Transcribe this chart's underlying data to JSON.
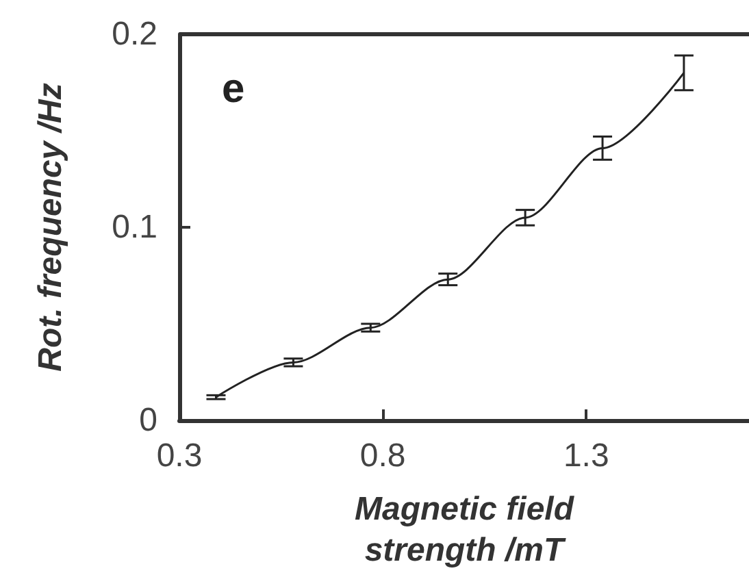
{
  "chart_data": {
    "type": "line",
    "xlabel": "Magnetic field\nstrength /mT",
    "ylabel": "Rot. frequency /Hz",
    "annotations": [
      "e"
    ],
    "x": [
      0.39,
      0.58,
      0.77,
      0.96,
      1.15,
      1.34,
      1.54
    ],
    "series": [
      {
        "color": "#222222",
        "values": [
          0.012,
          0.03,
          0.048,
          0.073,
          0.105,
          0.141,
          0.18
        ],
        "errors": [
          0.001,
          0.002,
          0.002,
          0.003,
          0.004,
          0.006,
          0.009
        ]
      }
    ],
    "xlim": [
      0.3,
      1.7
    ],
    "xticks": [
      0.3,
      0.8,
      1.3
    ],
    "ylim": [
      0,
      0.2
    ],
    "yticks": [
      0,
      0.1,
      0.2
    ],
    "marker": "none",
    "line_style": "solid"
  }
}
